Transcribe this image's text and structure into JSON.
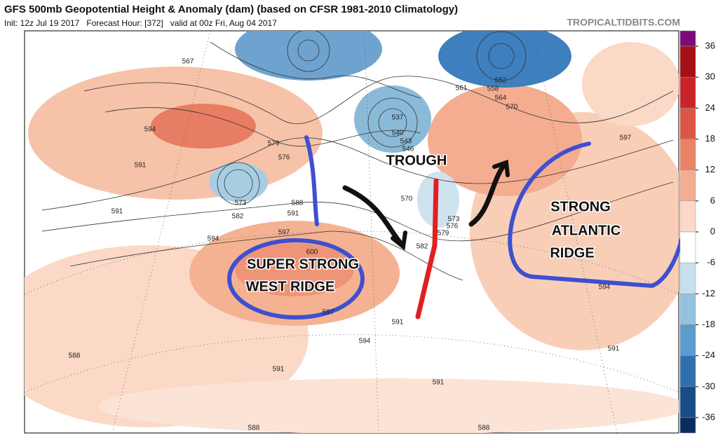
{
  "header": {
    "title": "GFS 500mb Geopotential Height & Anomaly (dam) (based on CFSR 1981-2010 Climatology)",
    "subtitle": "Init: 12z Jul 19 2017   Forecast Hour: [372]   valid at 00z Fri, Aug 04 2017",
    "site": "TROPICALTIDBITS.COM"
  },
  "colorbar": {
    "ticks": [
      36,
      30,
      24,
      18,
      12,
      6,
      0,
      -6,
      -12,
      -18,
      -24,
      -30,
      -36
    ],
    "colors": [
      "#7a0b78",
      "#a50f15",
      "#c8242a",
      "#dc5647",
      "#ea8366",
      "#f3ad92",
      "#fbd8c7",
      "#ffffff",
      "#c7dfee",
      "#94c1de",
      "#5c9bcb",
      "#2f6fae",
      "#184c88",
      "#0b2d5c"
    ]
  },
  "contour_labels": [
    "567",
    "594",
    "591",
    "591",
    "573",
    "582",
    "579",
    "576",
    "588",
    "591",
    "597",
    "594",
    "600",
    "597",
    "591",
    "594",
    "591",
    "588",
    "588",
    "588",
    "591",
    "591",
    "594",
    "597",
    "570",
    "573",
    "576",
    "579",
    "582",
    "537",
    "540",
    "543",
    "546",
    "552",
    "558",
    "561",
    "564",
    "570"
  ],
  "annotations": {
    "trough": "TROUGH",
    "west_ridge": [
      "SUPER STRONG",
      "WEST RIDGE"
    ],
    "atlantic_ridge": [
      "STRONG",
      "ATLANTIC",
      "RIDGE"
    ]
  }
}
